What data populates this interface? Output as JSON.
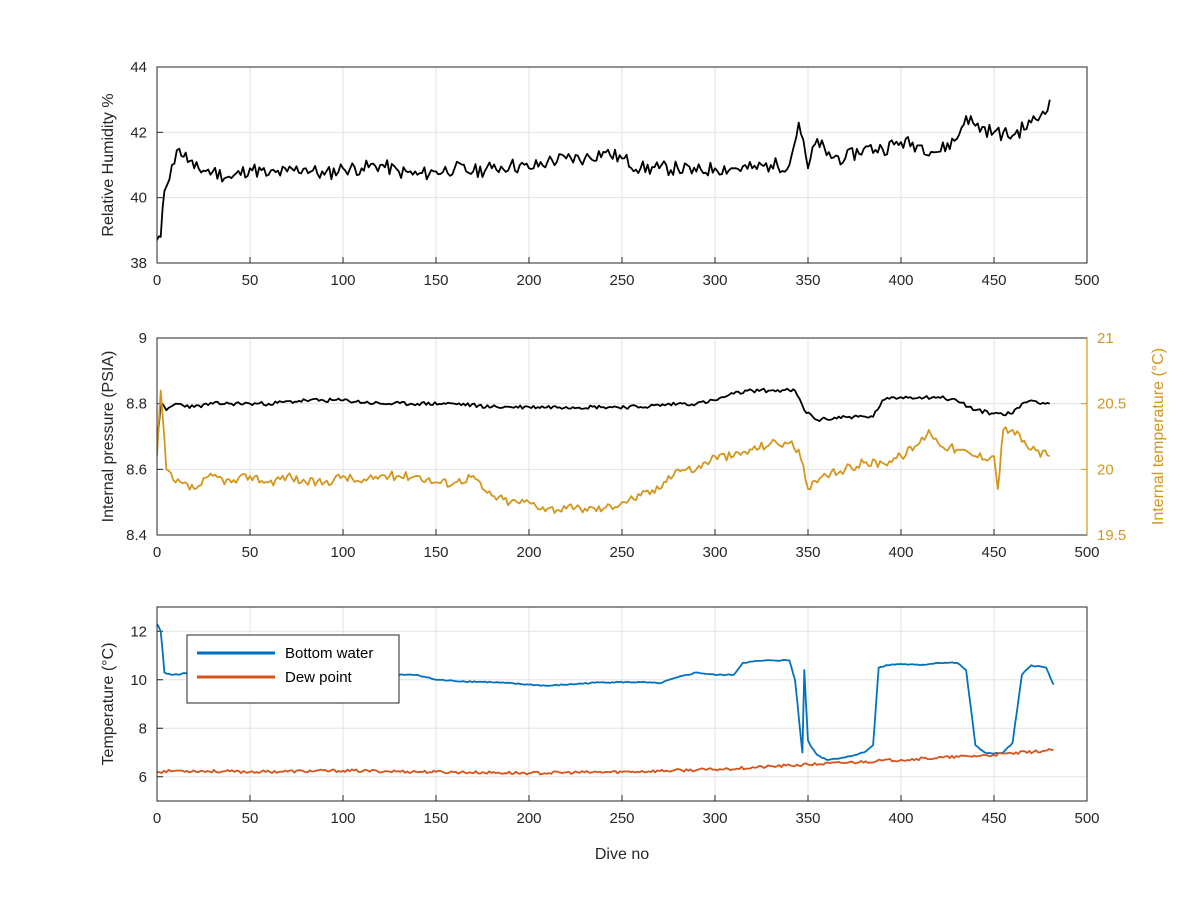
{
  "chart_data": [
    {
      "type": "line",
      "xlabel": "",
      "ylabel": "Relative Humidity %",
      "xlim": [
        0,
        500
      ],
      "ylim": [
        38,
        44
      ],
      "xticks": [
        "0",
        "50",
        "100",
        "150",
        "200",
        "250",
        "300",
        "350",
        "400",
        "450",
        "500"
      ],
      "yticks": [
        "38",
        "40",
        "42",
        "44"
      ],
      "grid": true,
      "series": [
        {
          "color": "#000000",
          "x": [
            0,
            2,
            4,
            8,
            12,
            20,
            30,
            40,
            50,
            60,
            70,
            80,
            90,
            100,
            110,
            120,
            130,
            140,
            150,
            160,
            170,
            180,
            190,
            200,
            210,
            220,
            230,
            240,
            250,
            260,
            270,
            280,
            290,
            300,
            310,
            320,
            330,
            340,
            345,
            350,
            355,
            360,
            370,
            380,
            390,
            400,
            410,
            420,
            430,
            435,
            440,
            450,
            460,
            470,
            475,
            480
          ],
          "y": [
            38.7,
            38.8,
            40.2,
            41.0,
            41.5,
            40.9,
            40.8,
            40.6,
            40.9,
            40.7,
            40.8,
            40.9,
            40.7,
            40.9,
            40.9,
            41.0,
            40.8,
            40.7,
            40.8,
            40.9,
            40.8,
            40.9,
            41.0,
            40.9,
            41.1,
            41.2,
            41.2,
            41.4,
            41.2,
            40.9,
            40.9,
            40.9,
            40.8,
            40.9,
            40.9,
            40.9,
            41.0,
            41.0,
            42.3,
            40.9,
            41.8,
            41.3,
            41.2,
            41.5,
            41.5,
            41.7,
            41.6,
            41.4,
            41.8,
            42.5,
            42.2,
            42.0,
            41.9,
            42.3,
            42.5,
            43.0
          ]
        }
      ]
    },
    {
      "type": "line",
      "xlabel": "",
      "ylabel": "Internal pressure (PSIA)",
      "ylabel_right": "Internal temperature (°C)",
      "xlim": [
        0,
        500
      ],
      "ylim": [
        8.4,
        9
      ],
      "ylim_right": [
        19.5,
        21
      ],
      "xticks": [
        "0",
        "50",
        "100",
        "150",
        "200",
        "250",
        "300",
        "350",
        "400",
        "450",
        "500"
      ],
      "yticks": [
        "8.4",
        "8.6",
        "8.8",
        "9"
      ],
      "yticks_right": [
        "19.5",
        "20",
        "20.5",
        "21"
      ],
      "grid": true,
      "series": [
        {
          "axis": "left",
          "color": "#000000",
          "x": [
            0,
            2,
            5,
            10,
            20,
            30,
            40,
            50,
            60,
            80,
            100,
            120,
            140,
            160,
            180,
            200,
            220,
            240,
            260,
            280,
            290,
            300,
            310,
            320,
            330,
            340,
            343,
            348,
            355,
            370,
            385,
            390,
            400,
            410,
            420,
            430,
            440,
            450,
            460,
            465,
            470,
            480
          ],
          "y": [
            8.68,
            8.8,
            8.78,
            8.8,
            8.79,
            8.8,
            8.8,
            8.8,
            8.8,
            8.81,
            8.81,
            8.8,
            8.8,
            8.8,
            8.79,
            8.79,
            8.79,
            8.79,
            8.79,
            8.8,
            8.8,
            8.81,
            8.83,
            8.84,
            8.84,
            8.84,
            8.84,
            8.78,
            8.75,
            8.76,
            8.76,
            8.81,
            8.82,
            8.82,
            8.82,
            8.81,
            8.78,
            8.77,
            8.77,
            8.8,
            8.81,
            8.8
          ]
        },
        {
          "axis": "right",
          "color": "#D4961C",
          "x": [
            0,
            2,
            5,
            10,
            20,
            30,
            40,
            50,
            60,
            70,
            80,
            90,
            100,
            110,
            120,
            130,
            140,
            150,
            160,
            170,
            175,
            180,
            190,
            200,
            210,
            220,
            230,
            240,
            250,
            260,
            270,
            275,
            280,
            290,
            300,
            310,
            320,
            330,
            340,
            345,
            350,
            355,
            360,
            370,
            380,
            390,
            400,
            410,
            415,
            420,
            430,
            440,
            450,
            452,
            455,
            460,
            470,
            480
          ],
          "y": [
            20.1,
            20.6,
            20.0,
            19.9,
            19.85,
            19.95,
            19.9,
            19.95,
            19.9,
            19.95,
            19.9,
            19.9,
            19.95,
            19.9,
            19.95,
            19.95,
            19.95,
            19.9,
            19.9,
            19.95,
            19.85,
            19.8,
            19.75,
            19.75,
            19.7,
            19.7,
            19.7,
            19.7,
            19.75,
            19.8,
            19.85,
            19.95,
            20.0,
            20.0,
            20.1,
            20.1,
            20.15,
            20.2,
            20.2,
            20.15,
            19.85,
            19.9,
            19.95,
            20.0,
            20.05,
            20.05,
            20.1,
            20.2,
            20.3,
            20.2,
            20.15,
            20.1,
            20.1,
            19.85,
            20.3,
            20.3,
            20.15,
            20.1
          ]
        }
      ]
    },
    {
      "type": "line",
      "xlabel": "Dive no",
      "ylabel": "Temperature (°C)",
      "xlim": [
        0,
        500
      ],
      "ylim": [
        5,
        13
      ],
      "xticks": [
        "0",
        "50",
        "100",
        "150",
        "200",
        "250",
        "300",
        "350",
        "400",
        "450",
        "500"
      ],
      "yticks": [
        "6",
        "8",
        "10",
        "12"
      ],
      "grid": true,
      "legend_position": "top-left",
      "series": [
        {
          "name": "Bottom water",
          "color": "#0072BD",
          "x": [
            0,
            2,
            4,
            8,
            20,
            40,
            60,
            100,
            120,
            140,
            150,
            160,
            180,
            200,
            210,
            240,
            260,
            270,
            280,
            290,
            300,
            310,
            315,
            320,
            330,
            340,
            343,
            347,
            348,
            350,
            352,
            355,
            360,
            370,
            380,
            385,
            388,
            392,
            400,
            410,
            420,
            430,
            435,
            440,
            445,
            450,
            455,
            460,
            465,
            470,
            478,
            482
          ],
          "y": [
            12.3,
            12.0,
            10.3,
            10.2,
            10.3,
            10.3,
            10.3,
            10.5,
            10.2,
            10.2,
            10.0,
            9.95,
            9.9,
            9.8,
            9.75,
            9.9,
            9.9,
            9.85,
            10.1,
            10.3,
            10.2,
            10.2,
            10.7,
            10.75,
            10.8,
            10.8,
            10.0,
            7.0,
            10.4,
            7.5,
            7.2,
            6.9,
            6.7,
            6.8,
            7.0,
            7.3,
            10.5,
            10.6,
            10.65,
            10.6,
            10.7,
            10.7,
            10.4,
            7.3,
            7.0,
            6.95,
            7.0,
            7.4,
            10.2,
            10.6,
            10.5,
            9.8
          ]
        },
        {
          "name": "Dew point",
          "color": "#D95319",
          "x": [
            0,
            10,
            50,
            100,
            150,
            200,
            250,
            300,
            350,
            400,
            450,
            482
          ],
          "y": [
            6.2,
            6.25,
            6.2,
            6.25,
            6.2,
            6.15,
            6.2,
            6.3,
            6.5,
            6.7,
            6.9,
            7.1
          ]
        }
      ]
    }
  ]
}
